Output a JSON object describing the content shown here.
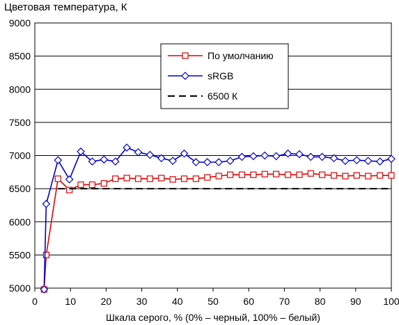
{
  "chart_data": {
    "type": "line",
    "title": "Цветовая температура, К",
    "xlabel": "Шкала серого, % (0% – черный, 100% – белый)",
    "ylabel": "",
    "xlim": [
      0,
      100
    ],
    "ylim": [
      5000,
      9000
    ],
    "xticks": [
      0,
      10,
      20,
      30,
      40,
      50,
      60,
      70,
      80,
      90,
      100
    ],
    "yticks": [
      5000,
      5500,
      6000,
      6500,
      7000,
      7500,
      8000,
      8500,
      9000
    ],
    "grid": "horizontal",
    "legend_position": "top-right",
    "series": [
      {
        "name": "По умолчанию",
        "color": "#e00000",
        "marker": "square",
        "x": [
          2.6,
          3.2,
          6.5,
          9.7,
          12.9,
          16.1,
          19.4,
          22.6,
          25.8,
          29.0,
          32.3,
          35.5,
          38.7,
          41.9,
          45.2,
          48.4,
          51.6,
          54.8,
          58.1,
          61.3,
          64.5,
          67.7,
          71.0,
          74.2,
          77.4,
          80.6,
          83.9,
          87.1,
          90.3,
          93.5,
          96.8,
          100
        ],
        "y": [
          4980,
          5500,
          6650,
          6480,
          6560,
          6560,
          6580,
          6650,
          6660,
          6650,
          6650,
          6660,
          6640,
          6650,
          6650,
          6670,
          6690,
          6710,
          6710,
          6710,
          6720,
          6720,
          6710,
          6710,
          6730,
          6710,
          6700,
          6690,
          6700,
          6690,
          6700,
          6700
        ]
      },
      {
        "name": "sRGB",
        "color": "#0000cc",
        "marker": "diamond",
        "x": [
          2.6,
          3.2,
          6.5,
          9.7,
          12.9,
          16.1,
          19.4,
          22.6,
          25.8,
          29.0,
          32.3,
          35.5,
          38.7,
          41.9,
          45.2,
          48.4,
          51.6,
          54.8,
          58.1,
          61.3,
          64.5,
          67.7,
          71.0,
          74.2,
          77.4,
          80.6,
          83.9,
          87.1,
          90.3,
          93.5,
          96.8,
          100
        ],
        "y": [
          4980,
          6270,
          6930,
          6640,
          7060,
          6910,
          6940,
          6910,
          7120,
          7050,
          7010,
          6960,
          6920,
          7030,
          6900,
          6900,
          6900,
          6920,
          6980,
          6990,
          7000,
          6990,
          7030,
          7020,
          6980,
          6980,
          6960,
          6920,
          6930,
          6920,
          6910,
          6950
        ]
      },
      {
        "name": "6500 К",
        "color": "#000000",
        "marker": "none",
        "dashed": true,
        "x": [
          6.5,
          100
        ],
        "y": [
          6500,
          6500
        ]
      }
    ]
  }
}
